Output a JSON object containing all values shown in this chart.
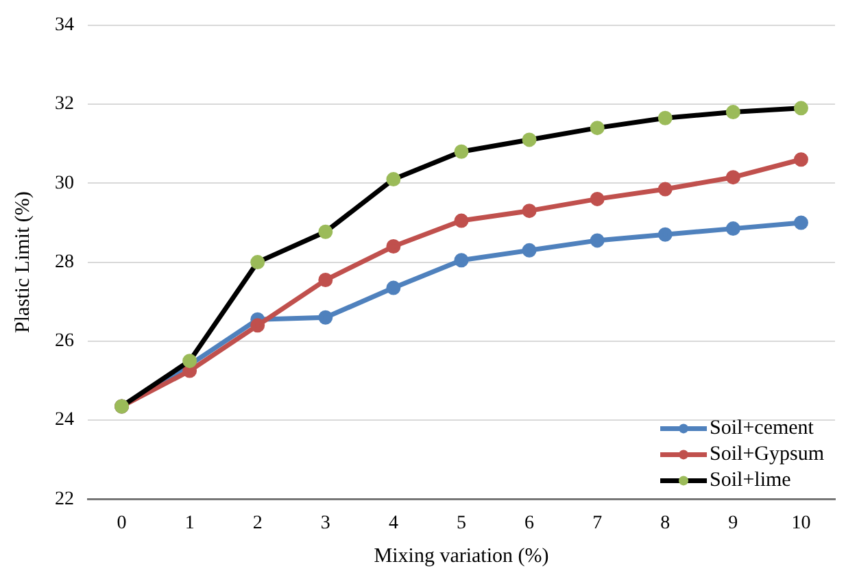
{
  "chart_data": {
    "type": "line",
    "xlabel": "Mixing variation (%)",
    "ylabel": "Plastic Limit (%)",
    "categories": [
      "0",
      "1",
      "2",
      "3",
      "4",
      "5",
      "6",
      "7",
      "8",
      "9",
      "10"
    ],
    "series": [
      {
        "name": "Soil+cement",
        "color": "#4f81bd",
        "values": [
          24.35,
          25.4,
          26.55,
          26.6,
          27.35,
          28.05,
          28.3,
          28.55,
          28.7,
          28.85,
          29.0
        ]
      },
      {
        "name": "Soil+Gypsum",
        "color": "#c0504d",
        "values": [
          24.35,
          25.25,
          26.4,
          27.55,
          28.4,
          29.05,
          29.3,
          29.6,
          29.85,
          30.15,
          30.6
        ]
      },
      {
        "name": "Soil+lime",
        "color": "#000000",
        "colors": [
          "#9bbb59",
          "#9bbb59",
          "#9bbb59",
          "#9bbb59",
          "#9bbb59",
          "#9bbb59",
          "#9bbb59",
          "#9bbb59",
          "#9bbb59",
          "#9bbb59",
          "#9bbb59"
        ],
        "values": [
          24.35,
          25.5,
          28.0,
          28.77,
          30.1,
          30.8,
          31.1,
          31.4,
          31.65,
          31.8,
          31.9
        ]
      }
    ],
    "ylim": [
      22,
      34
    ],
    "yticks": [
      22,
      24,
      26,
      28,
      30,
      32,
      34
    ],
    "grid": "y",
    "legend": "bottom right",
    "marker": "circle"
  }
}
